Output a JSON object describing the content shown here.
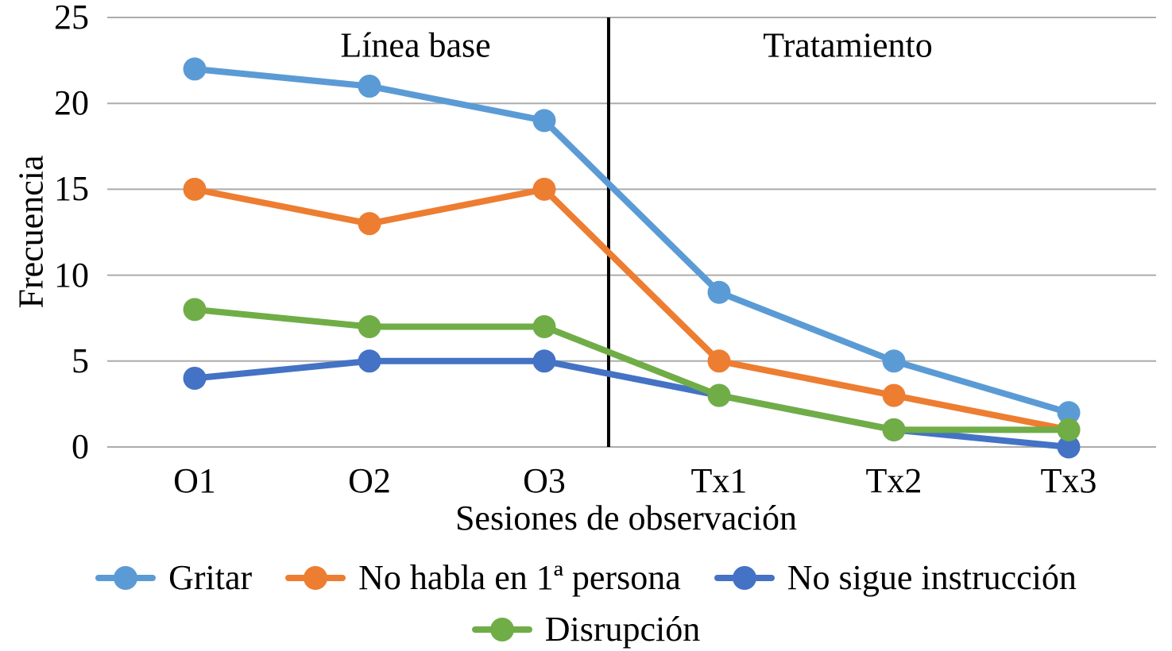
{
  "chart_data": {
    "type": "line",
    "categories": [
      "O1",
      "O2",
      "O3",
      "Tx1",
      "Tx2",
      "Tx3"
    ],
    "series": [
      {
        "name": "Gritar",
        "color": "#5B9BD5",
        "values": [
          22,
          21,
          19,
          9,
          5,
          2
        ]
      },
      {
        "name": "No habla en 1ª persona",
        "color": "#ED7D31",
        "values": [
          15,
          13,
          15,
          5,
          3,
          1
        ]
      },
      {
        "name": "No sigue instrucción",
        "color": "#4472C4",
        "values": [
          4,
          5,
          5,
          3,
          1,
          0
        ]
      },
      {
        "name": "Disrupción",
        "color": "#70AD47",
        "values": [
          8,
          7,
          7,
          3,
          1,
          1
        ]
      }
    ],
    "title": "",
    "xlabel": "Sesiones de observación",
    "ylabel": "Frecuencia",
    "ylim": [
      0,
      25
    ],
    "yticks": [
      0,
      5,
      10,
      15,
      20,
      25
    ],
    "grid": "horizontal",
    "gridline_color": "#ABABAB",
    "legend_position": "bottom",
    "legend_rows": [
      [
        "Gritar",
        "No habla en 1ª persona",
        "No sigue instrucción"
      ],
      [
        "Disrupción"
      ]
    ],
    "annotations": [
      {
        "type": "phase-label",
        "text": "Línea base"
      },
      {
        "type": "phase-label",
        "text": "Tratamiento"
      }
    ],
    "divider": {
      "type": "vertical-line",
      "color": "#000000",
      "between": [
        "O3",
        "Tx1"
      ],
      "x_fraction": 0.478
    }
  }
}
